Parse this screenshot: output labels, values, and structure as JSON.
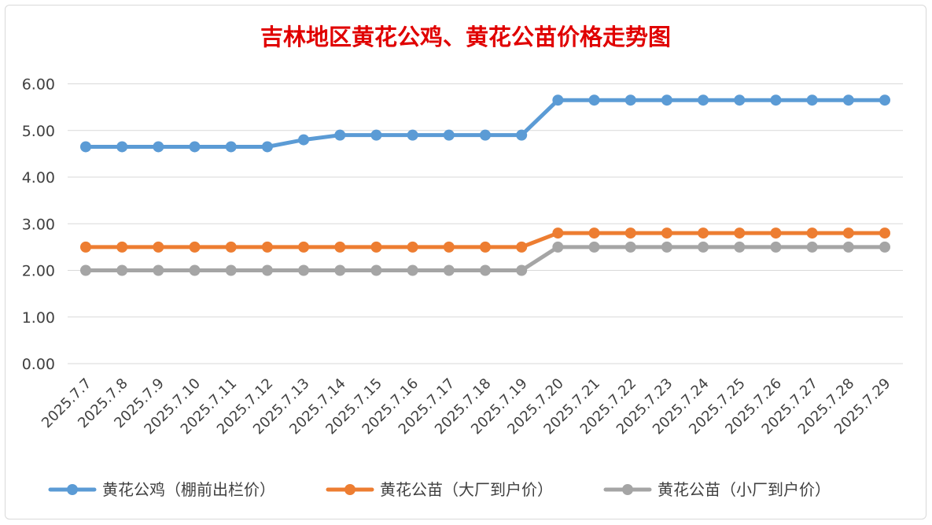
{
  "colors": {
    "title": "#e00000",
    "grid": "#d9d9d9",
    "axis_text": "#404040"
  },
  "chart_data": {
    "type": "line",
    "title": "吉林地区黄花公鸡、黄花公苗价格走势图",
    "xlabel": "",
    "ylabel": "",
    "ylim": [
      0,
      6
    ],
    "yticks": [
      "0.00",
      "1.00",
      "2.00",
      "3.00",
      "4.00",
      "5.00",
      "6.00"
    ],
    "grid": true,
    "legend_position": "bottom",
    "categories": [
      "2025.7.7",
      "2025.7.8",
      "2025.7.9",
      "2025.7.10",
      "2025.7.11",
      "2025.7.12",
      "2025.7.13",
      "2025.7.14",
      "2025.7.15",
      "2025.7.16",
      "2025.7.17",
      "2025.7.18",
      "2025.7.19",
      "2025.7.20",
      "2025.7.21",
      "2025.7.22",
      "2025.7.23",
      "2025.7.24",
      "2025.7.25",
      "2025.7.26",
      "2025.7.27",
      "2025.7.28",
      "2025.7.29"
    ],
    "series": [
      {
        "name": "黄花公鸡（棚前出栏价）",
        "color": "#5b9bd5",
        "values": [
          4.65,
          4.65,
          4.65,
          4.65,
          4.65,
          4.65,
          4.8,
          4.9,
          4.9,
          4.9,
          4.9,
          4.9,
          4.9,
          5.65,
          5.65,
          5.65,
          5.65,
          5.65,
          5.65,
          5.65,
          5.65,
          5.65,
          5.65
        ]
      },
      {
        "name": "黄花公苗（大厂到户价）",
        "color": "#ed7d31",
        "values": [
          2.5,
          2.5,
          2.5,
          2.5,
          2.5,
          2.5,
          2.5,
          2.5,
          2.5,
          2.5,
          2.5,
          2.5,
          2.5,
          2.8,
          2.8,
          2.8,
          2.8,
          2.8,
          2.8,
          2.8,
          2.8,
          2.8,
          2.8
        ]
      },
      {
        "name": "黄花公苗（小厂到户价）",
        "color": "#a5a5a5",
        "values": [
          2.0,
          2.0,
          2.0,
          2.0,
          2.0,
          2.0,
          2.0,
          2.0,
          2.0,
          2.0,
          2.0,
          2.0,
          2.0,
          2.5,
          2.5,
          2.5,
          2.5,
          2.5,
          2.5,
          2.5,
          2.5,
          2.5,
          2.5
        ]
      }
    ]
  }
}
